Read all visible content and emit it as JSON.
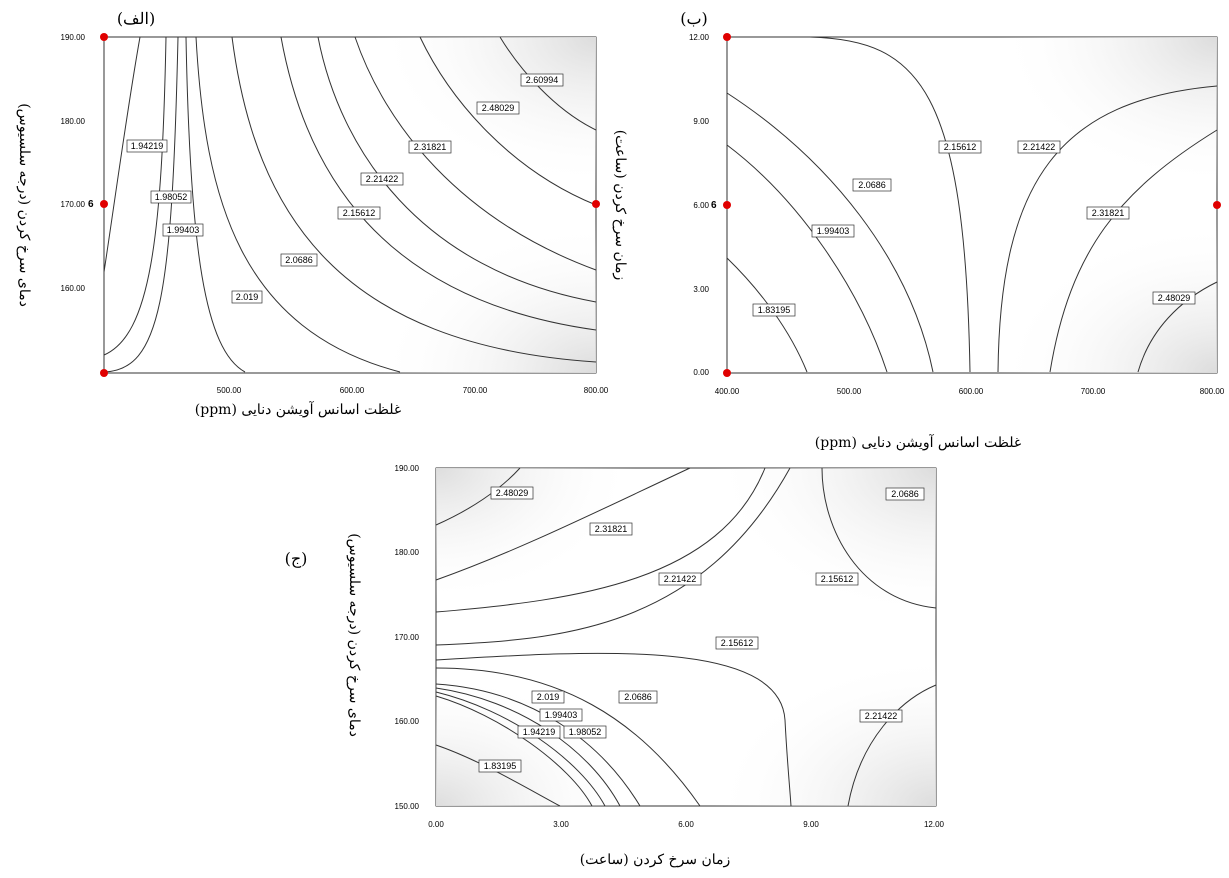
{
  "chart_data": [
    {
      "type": "contour",
      "panel_label": "(الف)",
      "title": "",
      "xlabel": "غلظت اسانس آویشن دنایی (ppm)",
      "ylabel": "دمای سرخ کردن (درجه سلسیوس)",
      "xlim": [
        400,
        800
      ],
      "ylim": [
        150,
        190
      ],
      "xticks": [
        "500.00",
        "600.00",
        "700.00",
        "800.00"
      ],
      "yticks": [
        "190.00",
        "180.00",
        "170.00",
        "160.00"
      ],
      "design_point_label": "6",
      "contour_levels": [
        "1.94219",
        "1.98052",
        "1.99403",
        "2.019",
        "2.0686",
        "2.15612",
        "2.21422",
        "2.31821",
        "2.48029",
        "2.60994"
      ]
    },
    {
      "type": "contour",
      "panel_label": "(ب)",
      "title": "",
      "xlabel": "غلظت اسانس آویشن دنایی (ppm)",
      "ylabel": "زمان سرخ کردن (ساعت)",
      "xlim": [
        400,
        800
      ],
      "ylim": [
        0,
        12
      ],
      "xticks": [
        "400.00",
        "500.00",
        "600.00",
        "700.00",
        "800.00"
      ],
      "yticks": [
        "12.00",
        "9.00",
        "6.00",
        "3.00",
        "0.00"
      ],
      "design_point_label": "6",
      "contour_levels": [
        "1.83195",
        "1.99403",
        "2.0686",
        "2.15612",
        "2.21422",
        "2.31821",
        "2.48029"
      ]
    },
    {
      "type": "contour",
      "panel_label": "(ج)",
      "title": "",
      "xlabel": "زمان سرخ کردن (ساعت)",
      "ylabel": "دمای سرخ کردن (درجه سلسیوس)",
      "xlim": [
        0,
        12
      ],
      "ylim": [
        150,
        190
      ],
      "xticks": [
        "0.00",
        "3.00",
        "6.00",
        "9.00",
        "12.00"
      ],
      "yticks": [
        "190.00",
        "180.00",
        "170.00",
        "160.00",
        "150.00"
      ],
      "contour_levels": [
        "2.48029",
        "2.31821",
        "2.21422",
        "2.0686",
        "2.15612",
        "2.15612",
        "2.019",
        "2.0686",
        "1.99403",
        "1.94219",
        "1.98052",
        "2.21422",
        "1.83195"
      ]
    }
  ]
}
